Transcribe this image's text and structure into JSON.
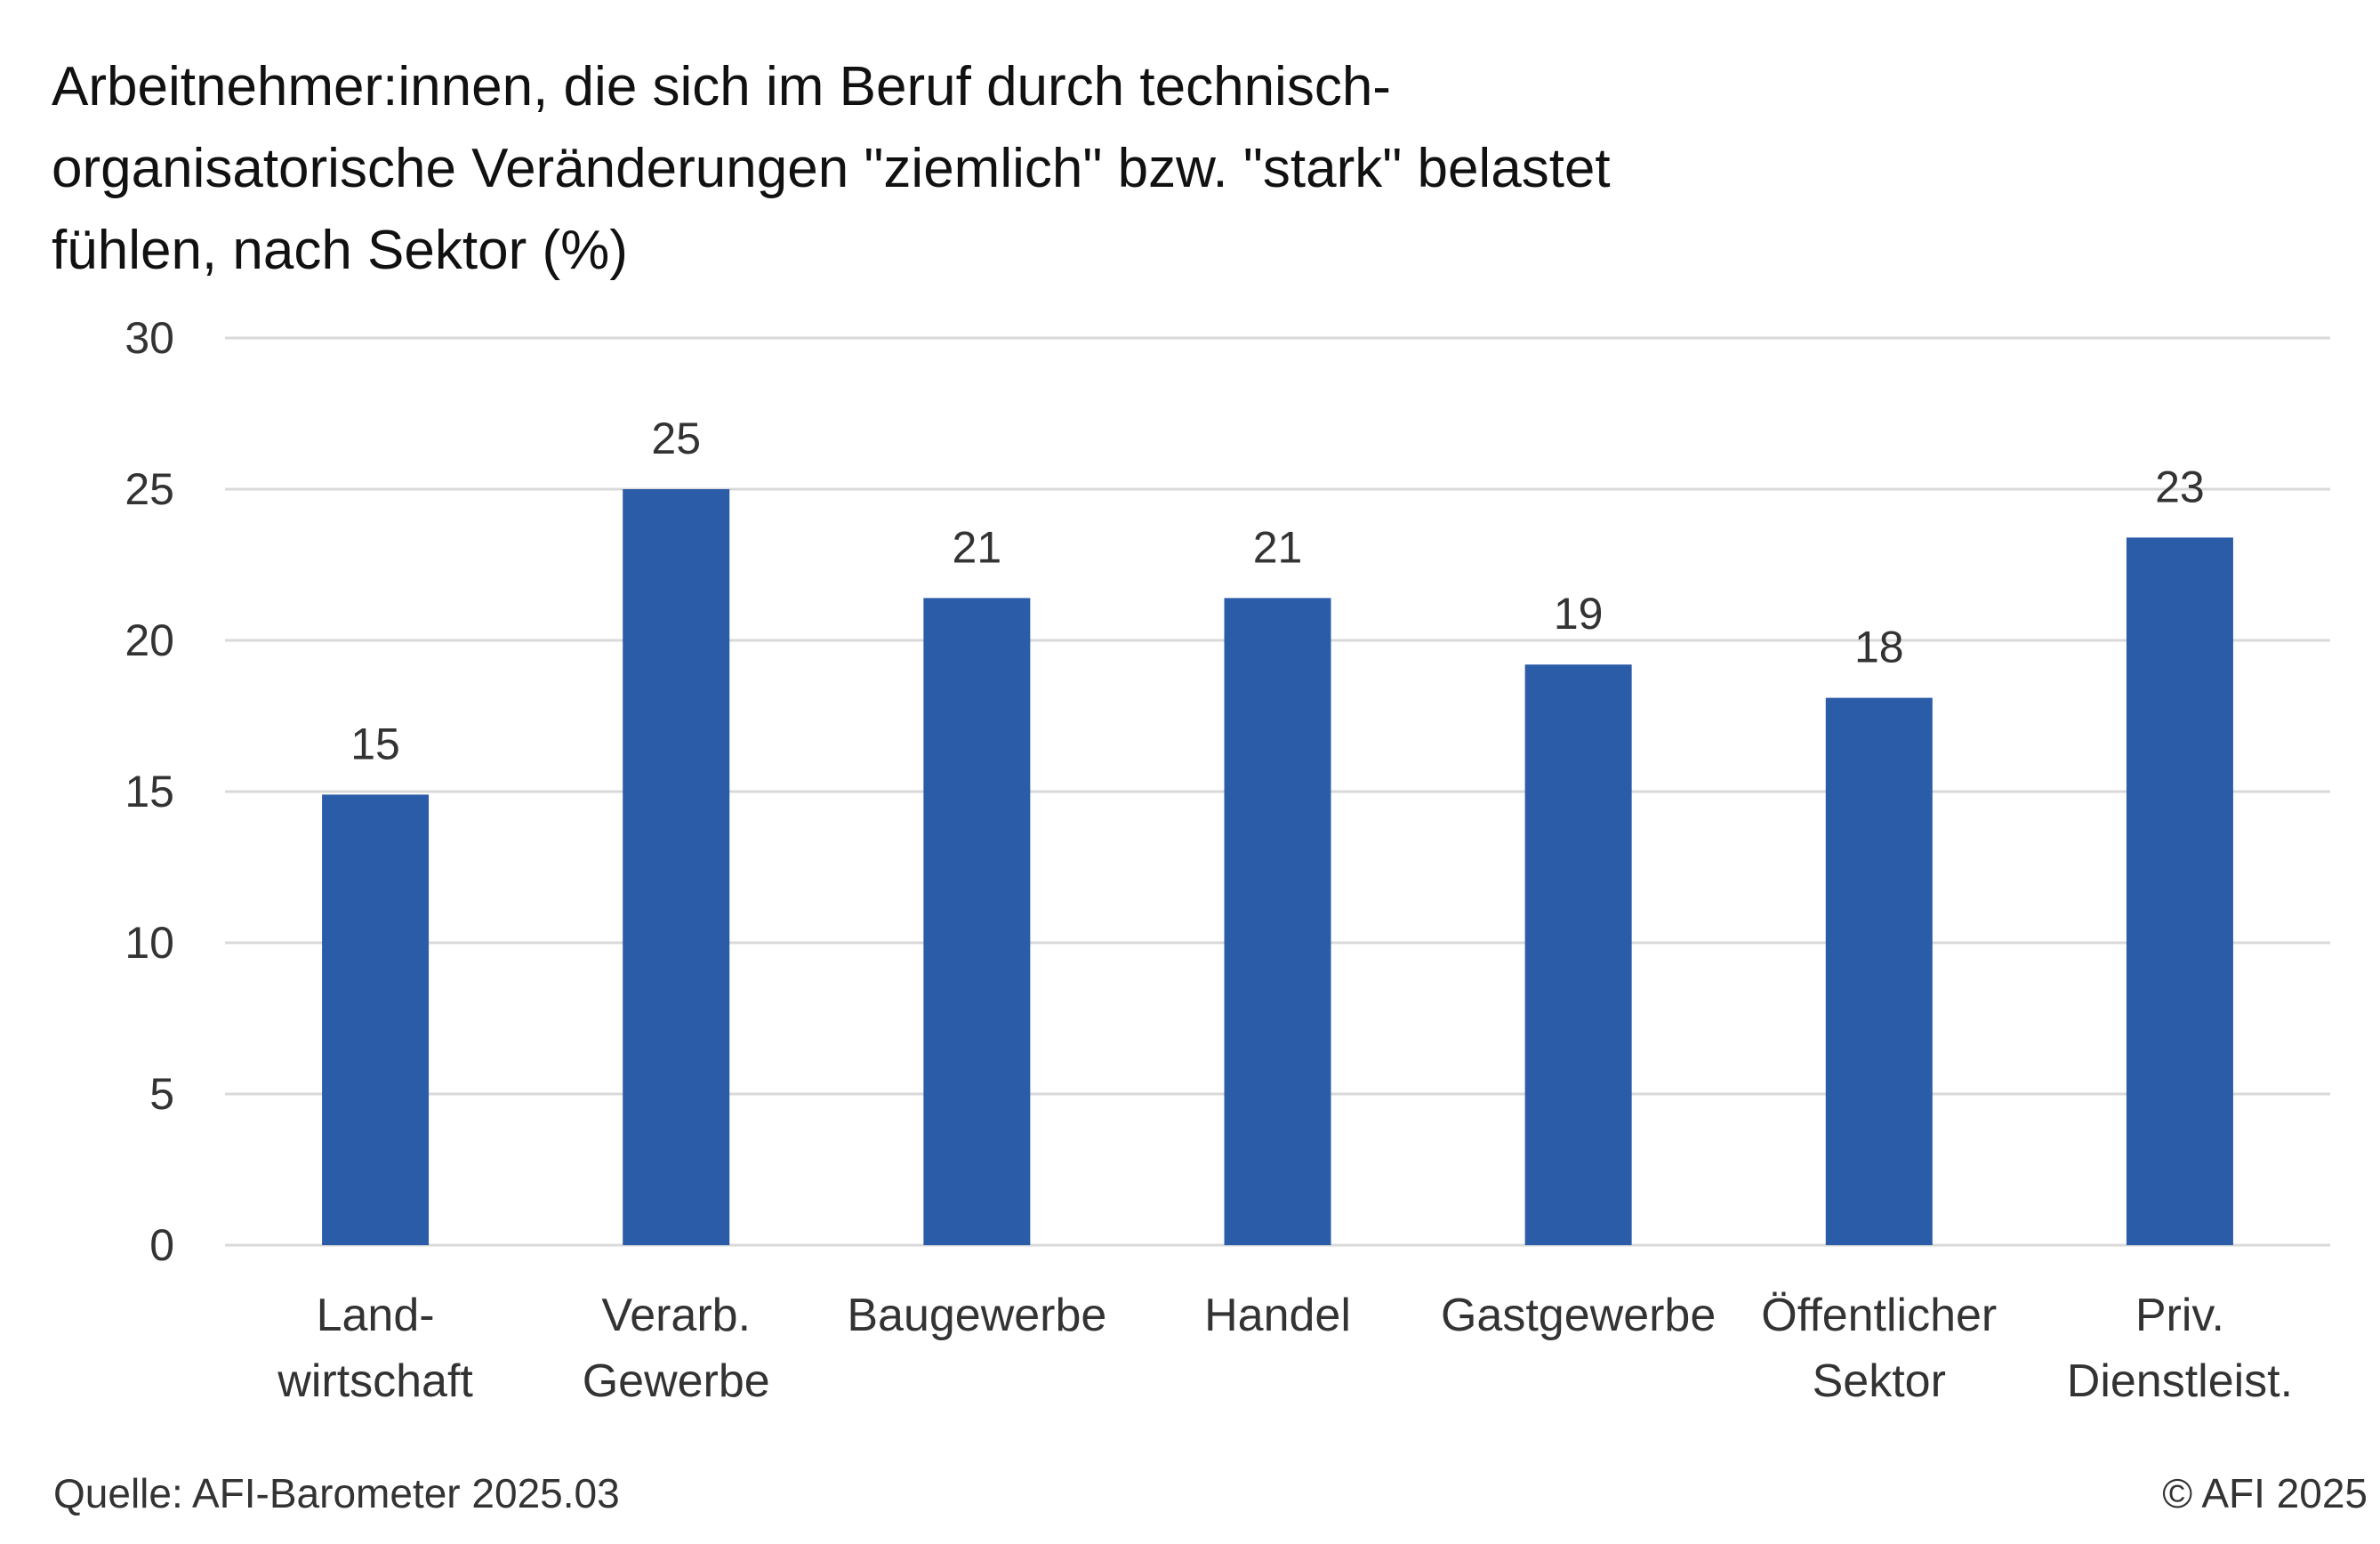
{
  "chart_data": {
    "type": "bar",
    "title": "Arbeitnehmer:innen, die sich im Beruf durch technisch-organisatorische Veränderungen \"ziemlich\" bzw. \"stark\" belastet fühlen, nach Sektor (%)",
    "title_lines": [
      "Arbeitnehmer:innen, die sich im Beruf durch technisch-",
      "organisatorische Veränderungen \"ziemlich\" bzw. \"stark\" belastet",
      "fühlen, nach Sektor (%)"
    ],
    "categories": [
      [
        "Land-",
        "wirtschaft"
      ],
      [
        "Verarb.",
        "Gewerbe"
      ],
      [
        "Baugewerbe"
      ],
      [
        "Handel"
      ],
      [
        "Gastgewerbe"
      ],
      [
        "Öffentlicher",
        "Sektor"
      ],
      [
        "Priv.",
        "Dienstleist."
      ]
    ],
    "values": [
      14.9,
      25.0,
      21.4,
      21.4,
      19.2,
      18.1,
      23.4
    ],
    "data_labels": [
      "15",
      "25",
      "21",
      "21",
      "19",
      "18",
      "23"
    ],
    "ylim": [
      0,
      30
    ],
    "yticks": [
      0,
      5,
      10,
      15,
      20,
      25,
      30
    ],
    "xlabel": "",
    "ylabel": "",
    "grid": true,
    "bar_color": "#2b5ca8",
    "grid_color": "#d9d9d9",
    "source": "Quelle: AFI-Barometer 2025.03",
    "copyright": "© AFI 2025"
  }
}
